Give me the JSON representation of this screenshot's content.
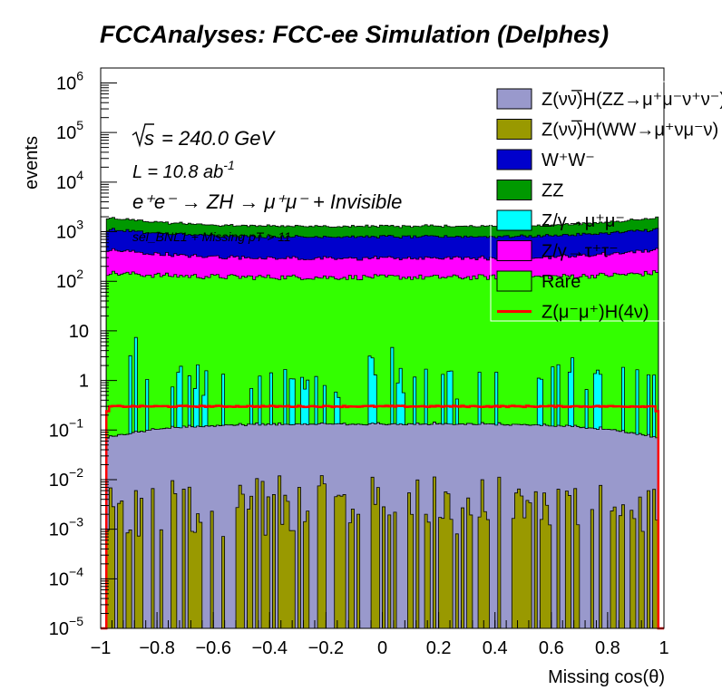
{
  "chart_data": {
    "type": "area",
    "title": "FCCAnalyses: FCC-ee Simulation (Delphes)",
    "xlabel": "Missing cos(θ)",
    "ylabel": "events",
    "xlim": [
      -1,
      1
    ],
    "ylim": [
      1e-05,
      2000000
    ],
    "yscale": "log",
    "stacked": true,
    "bins": 200,
    "xticks": [
      "−1",
      "−0.8",
      "−0.6",
      "−0.4",
      "−0.2",
      "0",
      "0.2",
      "0.4",
      "0.6",
      "0.8",
      "1"
    ],
    "yticks": [
      {
        "base": "10",
        "exp": "−5"
      },
      {
        "base": "10",
        "exp": "−4"
      },
      {
        "base": "10",
        "exp": "−3"
      },
      {
        "base": "10",
        "exp": "−2"
      },
      {
        "base": "10",
        "exp": "−1"
      },
      {
        "base": "1",
        "exp": ""
      },
      {
        "base": "10",
        "exp": ""
      },
      {
        "base": "10",
        "exp": "2"
      },
      {
        "base": "10",
        "exp": "3"
      },
      {
        "base": "10",
        "exp": "4"
      },
      {
        "base": "10",
        "exp": "5"
      },
      {
        "base": "10",
        "exp": "6"
      }
    ],
    "annotations": {
      "sqrt_s": "= 240.0 GeV",
      "lumi": "L = 10.8 ab",
      "lumi_exp": "-1",
      "process": "e⁺e⁻ → ZH → μ⁺μ⁻ + Invisible",
      "selection": "sel_BNL1 + Missing pT > 11"
    },
    "series": [
      {
        "name": "Z(νν̅)H(WW→μ⁺νμ⁻ν)",
        "color": "#999900",
        "center": 0.003,
        "edge": 0.0015,
        "fluct": 1.4,
        "dropout": 0.45
      },
      {
        "name": "Z(νν̅)H(ZZ→μ⁺μ⁻ν⁺ν⁻)",
        "color": "#9999cc",
        "center": 0.13,
        "edge": 0.06,
        "fluct": 0.03,
        "dropout": 0
      },
      {
        "name": "Z/γ→μ⁺μ⁻",
        "color": "#00ffff",
        "center": 0.7,
        "edge": 2.0,
        "fluct": 0.9,
        "dropout": 0.7,
        "spike": 3.0
      },
      {
        "name": "Rare",
        "color": "#33ff00",
        "center": 120,
        "edge": 150,
        "fluct": 0.12,
        "dropout": 0
      },
      {
        "name": "Z/γ→τ⁺τ⁻",
        "color": "#ff00ff",
        "center": 170,
        "edge": 300,
        "fluct": 0.1,
        "dropout": 0
      },
      {
        "name": "W⁺W⁻",
        "color": "#0000cc",
        "center": 500,
        "edge": 700,
        "fluct": 0.08,
        "dropout": 0
      },
      {
        "name": "ZZ",
        "color": "#009900",
        "center": 500,
        "edge": 800,
        "fluct": 0.08,
        "dropout": 0
      }
    ],
    "signal": {
      "name": "Z(μ⁻μ⁺)H(4ν)",
      "color": "#ff0000",
      "value": 0.3
    },
    "legend": {
      "placement": "top-right",
      "entries": [
        {
          "label": "Z(νν̅)H(ZZ→μ⁺μ⁻ν⁺ν⁻)",
          "color": "#9999cc",
          "kind": "box"
        },
        {
          "label": "Z(νν̅)H(WW→μ⁺νμ⁻ν)",
          "color": "#999900",
          "kind": "box"
        },
        {
          "label": "W⁺W⁻",
          "color": "#0000cc",
          "kind": "box"
        },
        {
          "label": "ZZ",
          "color": "#009900",
          "kind": "box"
        },
        {
          "label": "Z/γ→μ⁺μ⁻",
          "color": "#00ffff",
          "kind": "box"
        },
        {
          "label": "Z/γ→τ⁺τ⁻",
          "color": "#ff00ff",
          "kind": "box"
        },
        {
          "label": "Rare",
          "color": "#33ff00",
          "kind": "box"
        },
        {
          "label": "Z(μ⁻μ⁺)H(4ν)",
          "color": "#ff0000",
          "kind": "line"
        }
      ]
    }
  }
}
